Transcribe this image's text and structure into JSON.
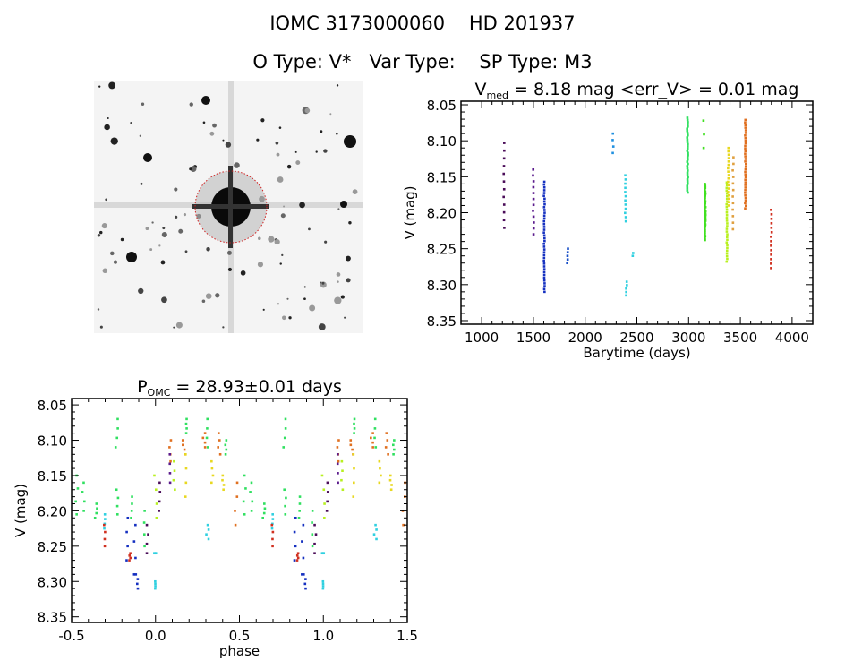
{
  "header": {
    "line1": "IOMC 3173000060    HD 201937",
    "line2": "O Type: V*   Var Type:    SP Type: M3"
  },
  "colors": {
    "purple": "#4a0c58",
    "violet": "#5a1a8c",
    "blue": "#1530c0",
    "blue2": "#1a50c8",
    "sky": "#2090e0",
    "cyan": "#30d0e0",
    "green": "#30e060",
    "green2": "#40e020",
    "yellowgreen": "#b8f020",
    "yellow": "#e8d820",
    "orange": "#e07020",
    "lightorange": "#e0a040",
    "red": "#d03020"
  },
  "chart_data": [
    {
      "type": "image",
      "title": "OMC field image"
    },
    {
      "type": "scatter",
      "title_main": "V",
      "title_sub": "med",
      "title_rest": " = 8.18 mag <err_V> = 0.01 mag",
      "xlabel": "Barytime (days)",
      "ylabel": "V (mag)",
      "xlim": [
        800,
        4200
      ],
      "ylim": [
        8.045,
        8.355
      ],
      "y_inverted": true,
      "xticks": [
        "1000",
        "1500",
        "2000",
        "2500",
        "3000",
        "3500",
        "4000"
      ],
      "yticks": [
        "8.05",
        "8.10",
        "8.15",
        "8.20",
        "8.25",
        "8.30",
        "8.35"
      ],
      "groups": [
        {
          "t": 1215,
          "mag_min": 8.103,
          "mag_max": 8.221,
          "n": 12,
          "color": "purple"
        },
        {
          "t": 1500,
          "mag_min": 8.14,
          "mag_max": 8.23,
          "n": 12,
          "color": "violet"
        },
        {
          "t": 1605,
          "mag_min": 8.157,
          "mag_max": 8.31,
          "n": 40,
          "color": "blue"
        },
        {
          "t": 1830,
          "mag_min": 8.25,
          "mag_max": 8.27,
          "n": 5,
          "color": "blue2"
        },
        {
          "t": 2270,
          "mag_min": 8.09,
          "mag_max": 8.117,
          "n": 4,
          "color": "sky"
        },
        {
          "t": 2390,
          "mag_min": 8.148,
          "mag_max": 8.212,
          "n": 12,
          "color": "cyan"
        },
        {
          "t": 2400,
          "mag_min": 8.296,
          "mag_max": 8.315,
          "n": 5,
          "color": "cyan"
        },
        {
          "t": 2460,
          "mag_min": 8.256,
          "mag_max": 8.26,
          "n": 2,
          "color": "cyan"
        },
        {
          "t": 2990,
          "mag_min": 8.068,
          "mag_max": 8.172,
          "n": 35,
          "color": "green"
        },
        {
          "t": 3145,
          "mag_min": 8.072,
          "mag_max": 8.11,
          "n": 3,
          "color": "green2"
        },
        {
          "t": 3160,
          "mag_min": 8.16,
          "mag_max": 8.238,
          "n": 30,
          "color": "green2"
        },
        {
          "t": 3370,
          "mag_min": 8.158,
          "mag_max": 8.268,
          "n": 30,
          "color": "yellowgreen"
        },
        {
          "t": 3385,
          "mag_min": 8.11,
          "mag_max": 8.19,
          "n": 18,
          "color": "yellow"
        },
        {
          "t": 3430,
          "mag_min": 8.123,
          "mag_max": 8.223,
          "n": 12,
          "color": "lightorange"
        },
        {
          "t": 3550,
          "mag_min": 8.071,
          "mag_max": 8.194,
          "n": 35,
          "color": "orange"
        },
        {
          "t": 3800,
          "mag_min": 8.196,
          "mag_max": 8.277,
          "n": 14,
          "color": "red"
        }
      ]
    },
    {
      "type": "scatter",
      "title_main": "P",
      "title_sub": "OMC",
      "title_rest": " = 28.93±0.01 days",
      "xlabel": "phase",
      "ylabel": "V (mag)",
      "xlim": [
        -0.5,
        1.5
      ],
      "ylim": [
        8.041,
        8.358
      ],
      "y_inverted": true,
      "xticks": [
        "-0.5",
        "0.0",
        "0.5",
        "1.0",
        "1.5"
      ],
      "yticks": [
        "8.05",
        "8.10",
        "8.15",
        "8.20",
        "8.25",
        "8.30",
        "8.35"
      ],
      "phase_clusters": [
        [
          0.53,
          8.15,
          8.205,
          "green"
        ],
        [
          0.57,
          8.16,
          8.2,
          "green"
        ],
        [
          0.645,
          8.19,
          8.21,
          "green"
        ],
        [
          0.7,
          8.205,
          8.225,
          "cyan"
        ],
        [
          0.695,
          8.22,
          8.25,
          "red"
        ],
        [
          0.77,
          8.07,
          8.11,
          "green"
        ],
        [
          0.77,
          8.17,
          8.205,
          "green"
        ],
        [
          0.83,
          8.21,
          8.27,
          "blue"
        ],
        [
          0.88,
          8.22,
          8.29,
          "blue"
        ],
        [
          0.86,
          8.18,
          8.21,
          "green"
        ],
        [
          0.85,
          8.26,
          8.27,
          "red"
        ],
        [
          0.89,
          8.29,
          8.31,
          "blue"
        ],
        [
          0.93,
          8.2,
          8.25,
          "green"
        ],
        [
          0.95,
          8.22,
          8.26,
          "purple"
        ],
        [
          0.005,
          8.3,
          8.31,
          "cyan"
        ],
        [
          0.0,
          8.26,
          8.26,
          "cyan"
        ],
        [
          0.0,
          8.15,
          8.21,
          "yellowgreen"
        ],
        [
          0.02,
          8.16,
          8.2,
          "purple"
        ],
        [
          0.09,
          8.1,
          8.13,
          "orange"
        ],
        [
          0.085,
          8.12,
          8.16,
          "violet"
        ],
        [
          0.11,
          8.13,
          8.17,
          "yellowgreen"
        ],
        [
          0.17,
          8.1,
          8.12,
          "orange"
        ],
        [
          0.19,
          8.07,
          8.09,
          "green"
        ],
        [
          0.18,
          8.12,
          8.18,
          "yellow"
        ],
        [
          0.29,
          8.09,
          8.11,
          "orange"
        ],
        [
          0.31,
          8.07,
          8.11,
          "green"
        ],
        [
          0.34,
          8.13,
          8.16,
          "yellow"
        ],
        [
          0.31,
          8.22,
          8.24,
          "cyan"
        ],
        [
          0.38,
          8.09,
          8.12,
          "orange"
        ],
        [
          0.42,
          8.1,
          8.12,
          "green"
        ],
        [
          0.4,
          8.15,
          8.17,
          "yellow"
        ],
        [
          0.48,
          8.16,
          8.22,
          "orange"
        ]
      ]
    }
  ]
}
